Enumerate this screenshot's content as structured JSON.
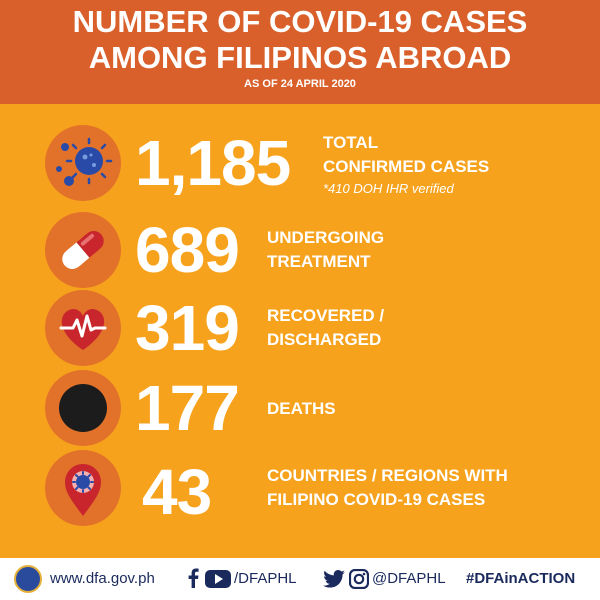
{
  "header": {
    "title_line1": "NUMBER OF COVID-19 CASES",
    "title_line2": "AMONG FILIPINOS ABROAD",
    "as_of": "AS OF 24 APRIL 2020"
  },
  "stats": {
    "confirmed": {
      "value": "1,185",
      "label_line1": "TOTAL",
      "label_line2": "CONFIRMED CASES",
      "note": "*410 DOH IHR verified",
      "icon": "virus-icon"
    },
    "treatment": {
      "value": "689",
      "label_line1": "UNDERGOING",
      "label_line2": "TREATMENT",
      "icon": "pill-capsule-icon"
    },
    "recovered": {
      "value": "319",
      "label_line1": "RECOVERED /",
      "label_line2": "DISCHARGED",
      "icon": "heartbeat-icon"
    },
    "deaths": {
      "value": "177",
      "label_line1": "DEATHS",
      "icon": "black-circle-icon"
    },
    "countries": {
      "value": "43",
      "label_line1": "COUNTRIES / REGIONS WITH",
      "label_line2": "FILIPINO COVID-19 CASES",
      "icon": "location-pin-virus-icon"
    }
  },
  "footer": {
    "website": "www.dfa.gov.ph",
    "facebook_youtube_handle": "/DFAPHL",
    "twitter_handle": "@DFAPHL",
    "hashtag": "#DFAinACTION"
  },
  "colors": {
    "background": "#f7a21c",
    "header_bg": "#d9602a",
    "icon_circle": "#e2722a",
    "footer_text": "#1a2a5c"
  }
}
